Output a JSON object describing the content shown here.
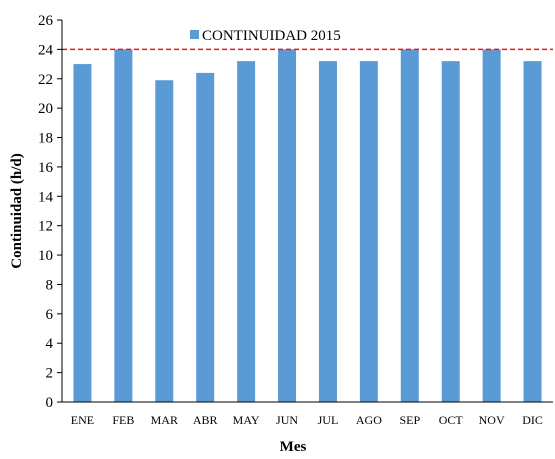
{
  "chart_data": {
    "type": "bar",
    "categories": [
      "ENE",
      "FEB",
      "MAR",
      "ABR",
      "MAY",
      "JUN",
      "JUL",
      "AGO",
      "SEP",
      "OCT",
      "NOV",
      "DIC"
    ],
    "series": [
      {
        "name": "CONTINUIDAD 2015",
        "values": [
          23.0,
          24.0,
          21.9,
          22.4,
          23.2,
          24.0,
          23.2,
          23.2,
          24.0,
          23.2,
          24.0,
          23.2
        ],
        "color": "#5b9bd5"
      }
    ],
    "reference_line": {
      "value": 24,
      "color": "#e31a1c",
      "style": "dashed"
    },
    "xlabel": "Mes",
    "ylabel": "Continuidad (h/d)",
    "ylim": [
      0,
      26
    ],
    "yticks": [
      0,
      2,
      4,
      6,
      8,
      10,
      12,
      14,
      16,
      18,
      20,
      22,
      24,
      26
    ],
    "grid": false,
    "legend_position": "top-center"
  }
}
